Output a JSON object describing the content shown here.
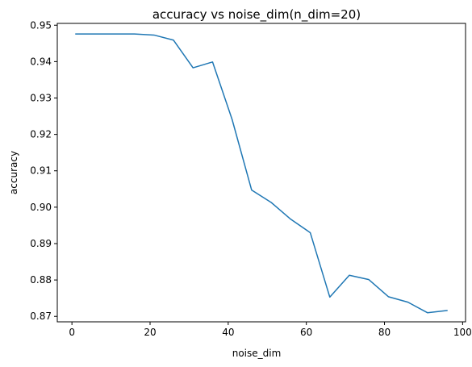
{
  "chart_data": {
    "type": "line",
    "title": "accuracy vs noise_dim(n_dim=20)",
    "xlabel": "noise_dim",
    "ylabel": "accuracy",
    "xlim": [
      -3.75,
      100.75
    ],
    "ylim": [
      0.8685,
      0.9505
    ],
    "xticks": [
      0,
      20,
      40,
      60,
      80,
      100
    ],
    "xtick_labels": [
      "0",
      "20",
      "40",
      "60",
      "80",
      "100"
    ],
    "yticks": [
      0.87,
      0.88,
      0.89,
      0.9,
      0.91,
      0.92,
      0.93,
      0.94,
      0.95
    ],
    "ytick_labels": [
      "0.87",
      "0.88",
      "0.89",
      "0.90",
      "0.91",
      "0.92",
      "0.93",
      "0.94",
      "0.95"
    ],
    "grid": false,
    "series": [
      {
        "color": "#1f77b4",
        "x": [
          1,
          6,
          11,
          16,
          21,
          26,
          31,
          36,
          41,
          46,
          51,
          56,
          61,
          66,
          71,
          76,
          81,
          86,
          91,
          96
        ],
        "y": [
          0.9476,
          0.9476,
          0.9476,
          0.9476,
          0.9473,
          0.9459,
          0.9383,
          0.9399,
          0.9241,
          0.9047,
          0.9013,
          0.8967,
          0.893,
          0.8753,
          0.8813,
          0.8801,
          0.8754,
          0.8739,
          0.871,
          0.8716
        ]
      }
    ]
  }
}
